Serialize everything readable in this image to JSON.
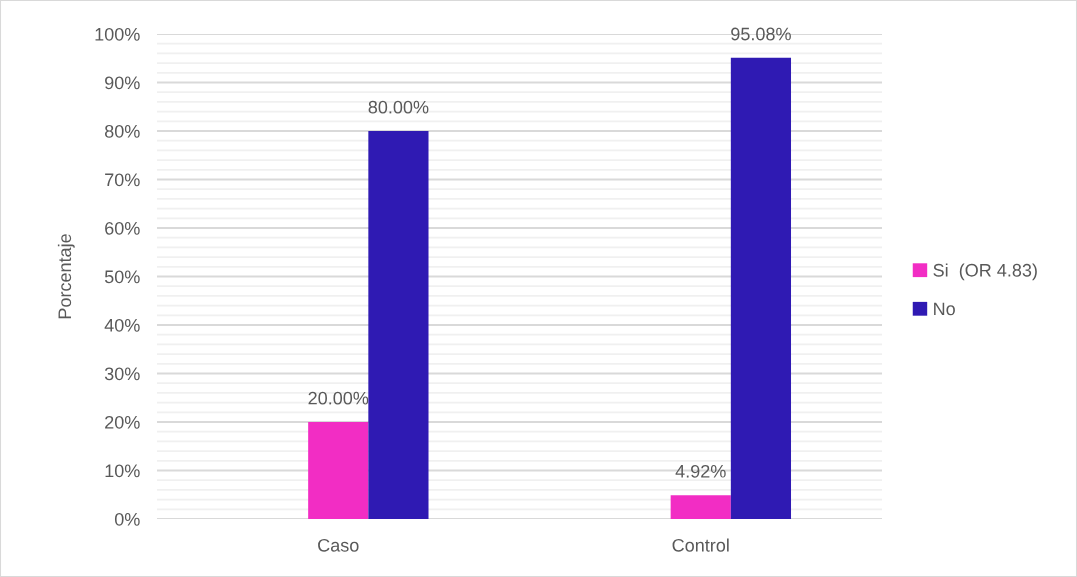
{
  "chart_data": {
    "type": "bar",
    "categories": [
      "Caso",
      "Control"
    ],
    "ylabel": "Porcentaje",
    "series": [
      {
        "name": "Si  (OR 4.83)",
        "color": "#f22dc4",
        "values": [
          20.0,
          4.92
        ],
        "value_labels": [
          "20.00%",
          "4.92%"
        ]
      },
      {
        "name": "No",
        "color": "#2f1ab3",
        "values": [
          80.0,
          95.08
        ],
        "value_labels": [
          "80.00%",
          "95.08%"
        ]
      }
    ],
    "ylim": [
      0,
      100
    ],
    "yticks": [
      {
        "value": 0,
        "label": "0%"
      },
      {
        "value": 2,
        "label": null
      },
      {
        "value": 4,
        "label": null
      },
      {
        "value": 6,
        "label": null
      },
      {
        "value": 8,
        "label": null
      },
      {
        "value": 10,
        "label": "10%"
      },
      {
        "value": 12,
        "label": null
      },
      {
        "value": 14,
        "label": null
      },
      {
        "value": 16,
        "label": null
      },
      {
        "value": 18,
        "label": null
      },
      {
        "value": 20,
        "label": "20%"
      },
      {
        "value": 22,
        "label": null
      },
      {
        "value": 24,
        "label": null
      },
      {
        "value": 26,
        "label": null
      },
      {
        "value": 28,
        "label": null
      },
      {
        "value": 30,
        "label": "30%"
      },
      {
        "value": 32,
        "label": null
      },
      {
        "value": 34,
        "label": null
      },
      {
        "value": 36,
        "label": null
      },
      {
        "value": 38,
        "label": null
      },
      {
        "value": 40,
        "label": "40%"
      },
      {
        "value": 42,
        "label": null
      },
      {
        "value": 44,
        "label": null
      },
      {
        "value": 46,
        "label": null
      },
      {
        "value": 48,
        "label": null
      },
      {
        "value": 50,
        "label": "50%"
      },
      {
        "value": 52,
        "label": null
      },
      {
        "value": 54,
        "label": null
      },
      {
        "value": 56,
        "label": null
      },
      {
        "value": 58,
        "label": null
      },
      {
        "value": 60,
        "label": "60%"
      },
      {
        "value": 62,
        "label": null
      },
      {
        "value": 64,
        "label": null
      },
      {
        "value": 66,
        "label": null
      },
      {
        "value": 68,
        "label": null
      },
      {
        "value": 70,
        "label": "70%"
      },
      {
        "value": 72,
        "label": null
      },
      {
        "value": 74,
        "label": null
      },
      {
        "value": 76,
        "label": null
      },
      {
        "value": 78,
        "label": null
      },
      {
        "value": 80,
        "label": "80%"
      },
      {
        "value": 82,
        "label": null
      },
      {
        "value": 84,
        "label": null
      },
      {
        "value": 86,
        "label": null
      },
      {
        "value": 88,
        "label": null
      },
      {
        "value": 90,
        "label": "90%"
      },
      {
        "value": 92,
        "label": null
      },
      {
        "value": 94,
        "label": null
      },
      {
        "value": 96,
        "label": null
      },
      {
        "value": 98,
        "label": null
      },
      {
        "value": 100,
        "label": "100%"
      }
    ],
    "grid": "y",
    "legend": "right"
  }
}
